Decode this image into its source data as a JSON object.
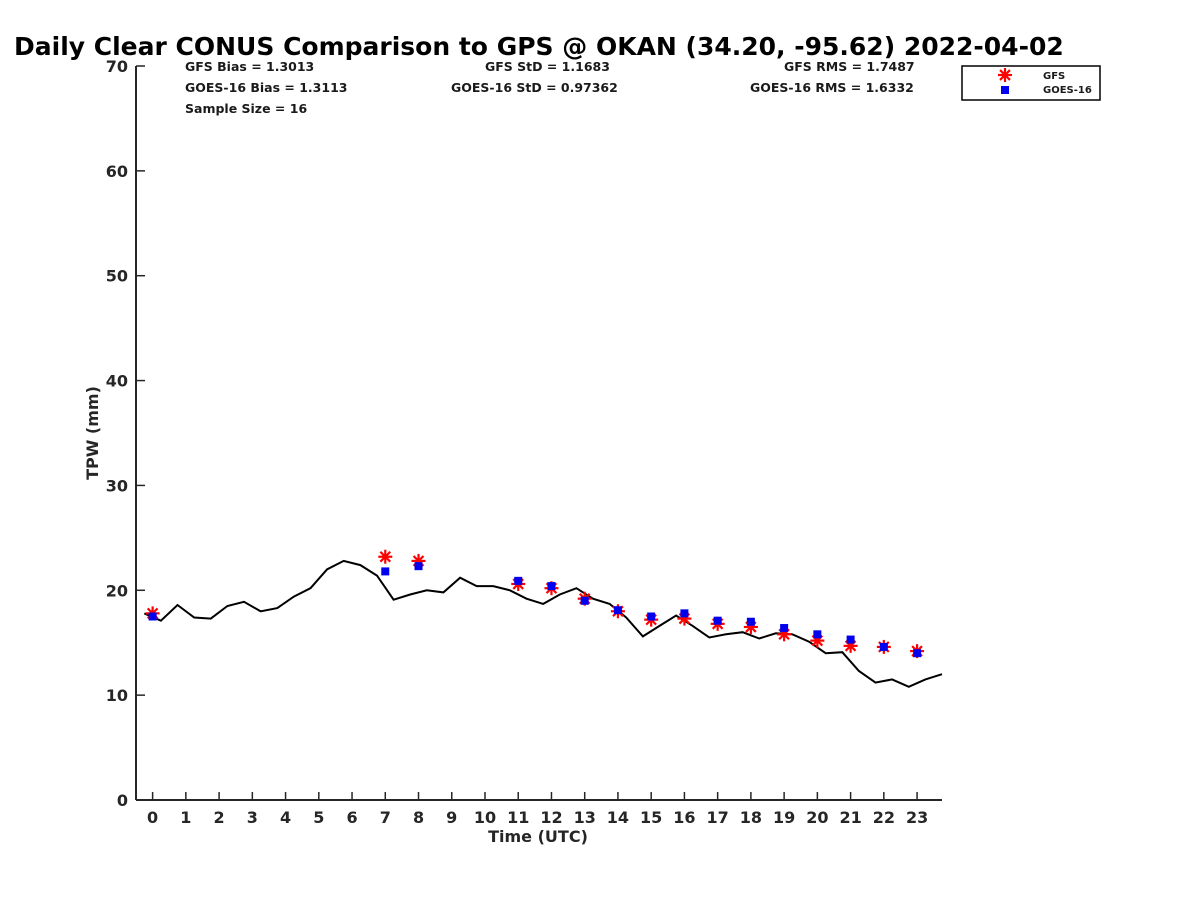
{
  "chart_data": {
    "type": "scatter",
    "title": "Daily Clear CONUS Comparison to GPS @ OKAN (34.20, -95.62) 2022-04-02",
    "xlabel": "Time (UTC)",
    "ylabel": "TPW (mm)",
    "xlim": [
      -0.5,
      23.75
    ],
    "ylim": [
      0,
      70
    ],
    "x_ticks": [
      "0",
      "1",
      "2",
      "3",
      "4",
      "5",
      "6",
      "7",
      "8",
      "9",
      "10",
      "11",
      "12",
      "13",
      "14",
      "15",
      "16",
      "17",
      "18",
      "19",
      "20",
      "21",
      "22",
      "23"
    ],
    "y_ticks": [
      "0",
      "10",
      "20",
      "30",
      "40",
      "50",
      "60",
      "70"
    ],
    "stats": {
      "gfs_bias": "GFS Bias = 1.3013",
      "goes_bias": "GOES-16 Bias = 1.3113",
      "sample_size": "Sample Size = 16",
      "gfs_std": "GFS StD = 1.1683",
      "goes_std": "GOES-16 StD = 0.97362",
      "gfs_rms": "GFS RMS = 1.7487",
      "goes_rms": "GOES-16 RMS = 1.6332"
    },
    "legend_position": "top-right",
    "series": [
      {
        "name": "GPS",
        "style": "line",
        "color": "#000000",
        "points": [
          [
            -0.25,
            17.8
          ],
          [
            0.25,
            17.1
          ],
          [
            0.75,
            18.6
          ],
          [
            1.25,
            17.4
          ],
          [
            1.75,
            17.3
          ],
          [
            2.25,
            18.5
          ],
          [
            2.75,
            18.9
          ],
          [
            3.25,
            18.0
          ],
          [
            3.75,
            18.3
          ],
          [
            4.25,
            19.4
          ],
          [
            4.75,
            20.2
          ],
          [
            5.25,
            22.0
          ],
          [
            5.75,
            22.8
          ],
          [
            6.25,
            22.4
          ],
          [
            6.75,
            21.4
          ],
          [
            7.25,
            19.1
          ],
          [
            7.75,
            19.6
          ],
          [
            8.25,
            20.0
          ],
          [
            8.75,
            19.8
          ],
          [
            9.25,
            21.2
          ],
          [
            9.75,
            20.4
          ],
          [
            10.25,
            20.4
          ],
          [
            10.75,
            20.0
          ],
          [
            11.25,
            19.2
          ],
          [
            11.75,
            18.7
          ],
          [
            12.25,
            19.6
          ],
          [
            12.75,
            20.2
          ],
          [
            13.25,
            19.2
          ],
          [
            13.75,
            18.7
          ],
          [
            14.25,
            17.4
          ],
          [
            14.75,
            15.6
          ],
          [
            15.25,
            16.6
          ],
          [
            15.75,
            17.6
          ],
          [
            16.25,
            16.6
          ],
          [
            16.75,
            15.5
          ],
          [
            17.25,
            15.8
          ],
          [
            17.75,
            16.0
          ],
          [
            18.25,
            15.4
          ],
          [
            18.75,
            15.9
          ],
          [
            19.25,
            15.8
          ],
          [
            19.75,
            15.1
          ],
          [
            20.25,
            14.0
          ],
          [
            20.75,
            14.1
          ],
          [
            21.25,
            12.3
          ],
          [
            21.75,
            11.2
          ],
          [
            22.25,
            11.5
          ],
          [
            22.75,
            10.8
          ],
          [
            23.25,
            11.5
          ],
          [
            23.75,
            12.0
          ]
        ]
      },
      {
        "name": "GFS",
        "style": "asterisk",
        "color": "#ff0000",
        "points": [
          [
            0,
            17.8
          ],
          [
            7,
            23.2
          ],
          [
            8,
            22.8
          ],
          [
            11,
            20.6
          ],
          [
            12,
            20.2
          ],
          [
            13,
            19.2
          ],
          [
            14,
            18.0
          ],
          [
            15,
            17.2
          ],
          [
            16,
            17.3
          ],
          [
            17,
            16.8
          ],
          [
            18,
            16.5
          ],
          [
            19,
            15.8
          ],
          [
            20,
            15.2
          ],
          [
            21,
            14.7
          ],
          [
            22,
            14.6
          ],
          [
            23,
            14.2
          ]
        ]
      },
      {
        "name": "GOES-16",
        "style": "square",
        "color": "#0000ee",
        "points": [
          [
            0,
            17.5
          ],
          [
            7,
            21.8
          ],
          [
            8,
            22.3
          ],
          [
            11,
            20.9
          ],
          [
            12,
            20.4
          ],
          [
            13,
            19.0
          ],
          [
            14,
            18.1
          ],
          [
            15,
            17.5
          ],
          [
            16,
            17.8
          ],
          [
            17,
            17.1
          ],
          [
            18,
            17.0
          ],
          [
            19,
            16.4
          ],
          [
            20,
            15.8
          ],
          [
            21,
            15.3
          ],
          [
            22,
            14.6
          ],
          [
            23,
            14.0
          ]
        ]
      }
    ]
  },
  "legend": {
    "gfs": "GFS",
    "goes": "GOES-16"
  }
}
